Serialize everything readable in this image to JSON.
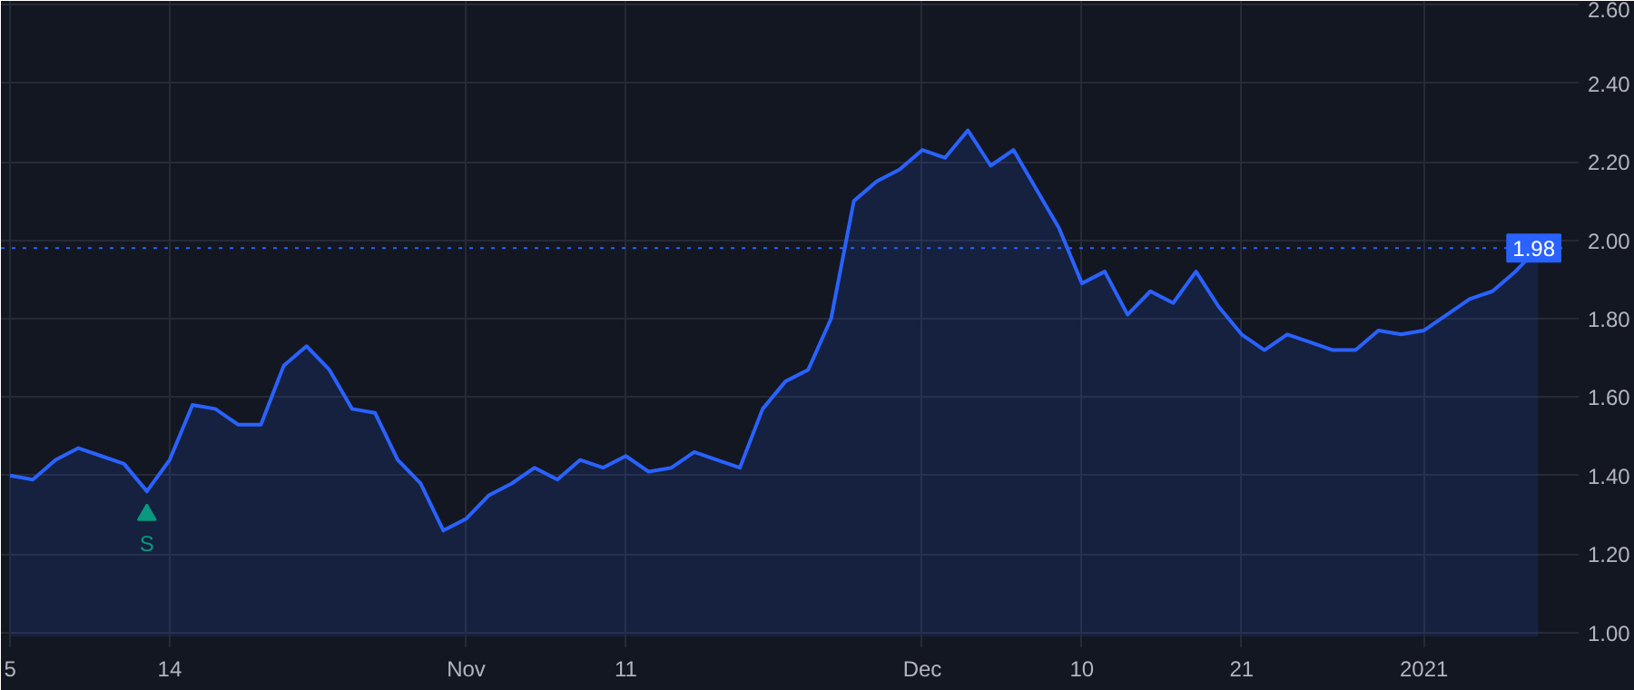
{
  "chart_data": {
    "type": "area",
    "categories": [
      "5",
      null,
      null,
      null,
      null,
      null,
      null,
      "14",
      null,
      null,
      null,
      null,
      null,
      null,
      null,
      null,
      null,
      null,
      null,
      null,
      "Nov",
      null,
      null,
      null,
      null,
      null,
      null,
      "11",
      null,
      null,
      null,
      null,
      null,
      null,
      null,
      null,
      null,
      null,
      null,
      null,
      "Dec",
      null,
      null,
      null,
      null,
      null,
      null,
      "10",
      null,
      null,
      null,
      null,
      null,
      null,
      "21",
      null,
      null,
      null,
      null,
      null,
      null,
      null,
      "2021",
      null,
      null,
      null,
      null,
      null
    ],
    "series": [
      {
        "color": "#2962ff",
        "values": [
          1.4,
          1.39,
          1.44,
          1.47,
          1.45,
          1.43,
          1.36,
          1.44,
          1.58,
          1.57,
          1.53,
          1.53,
          1.68,
          1.73,
          1.67,
          1.57,
          1.56,
          1.44,
          1.38,
          1.26,
          1.29,
          1.35,
          1.38,
          1.42,
          1.39,
          1.44,
          1.42,
          1.45,
          1.41,
          1.42,
          1.46,
          1.44,
          1.42,
          1.57,
          1.64,
          1.67,
          1.8,
          2.1,
          2.15,
          2.18,
          2.23,
          2.21,
          2.28,
          2.19,
          2.23,
          2.13,
          2.03,
          1.89,
          1.92,
          1.81,
          1.87,
          1.84,
          1.92,
          1.83,
          1.76,
          1.72,
          1.76,
          1.74,
          1.72,
          1.72,
          1.77,
          1.76,
          1.77,
          1.81,
          1.85,
          1.87,
          1.92,
          1.98
        ]
      },
      {
        "type": "scatter",
        "name": "S",
        "color": "#089981",
        "marker": "triangle",
        "values": [
          null,
          null,
          null,
          null,
          null,
          null,
          1.3,
          null,
          null,
          null,
          null,
          null,
          null,
          null,
          null,
          null,
          null,
          null,
          null,
          null,
          null,
          null,
          null,
          null,
          null,
          null,
          null,
          null,
          null,
          null,
          null,
          null,
          null,
          null,
          null,
          null,
          null,
          null,
          null,
          null,
          null,
          null,
          null,
          null,
          null,
          null,
          null,
          null,
          null,
          null,
          null,
          null,
          null,
          null,
          null,
          null,
          null,
          null,
          null,
          null,
          null,
          null,
          null,
          null,
          null,
          null,
          null,
          null
        ]
      }
    ],
    "ylim": [
      0.99,
      2.61
    ],
    "yticks": [
      {
        "value": 1.0,
        "label": "1.00"
      },
      {
        "value": 1.2,
        "label": "1.20"
      },
      {
        "value": 1.4,
        "label": "1.40"
      },
      {
        "value": 1.6,
        "label": "1.60"
      },
      {
        "value": 1.8,
        "label": "1.80"
      },
      {
        "value": 2.0,
        "label": "2.00"
      },
      {
        "value": 2.2,
        "label": "2.20"
      },
      {
        "value": 2.4,
        "label": "2.40"
      },
      {
        "value": 2.6,
        "label": "2.60"
      }
    ],
    "grid": true,
    "ref_lines": [
      {
        "axis": "y",
        "value": 1.98,
        "label": "1.98",
        "color": "#2962ff",
        "line_style": "dotted"
      }
    ]
  }
}
